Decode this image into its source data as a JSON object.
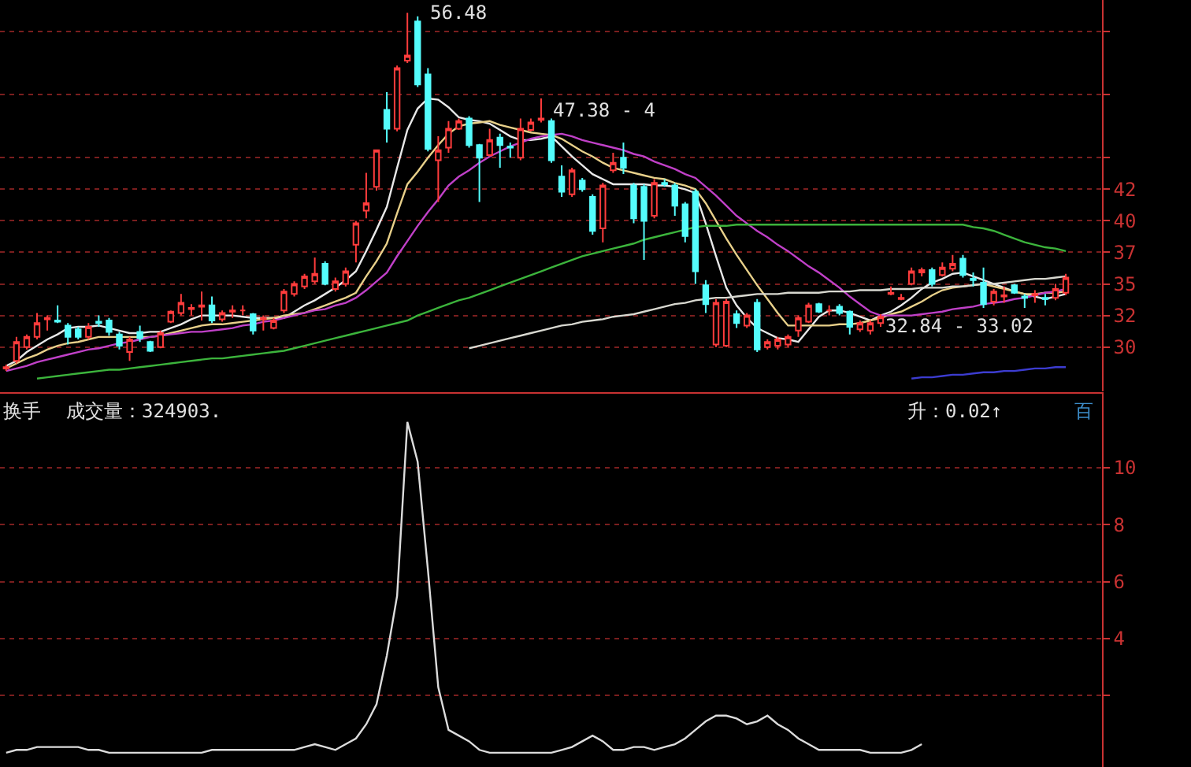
{
  "chart_data": [
    {
      "type": "candlestick",
      "categories": [
        null,
        null,
        null,
        null,
        null,
        null,
        null,
        null,
        null,
        null,
        null,
        null,
        null,
        null,
        null,
        null,
        null,
        null,
        null,
        null,
        null,
        null,
        null,
        null,
        null,
        null,
        null,
        null,
        null,
        null,
        null,
        null,
        null,
        null,
        null,
        null,
        null,
        null,
        null,
        null,
        null,
        null,
        null,
        null,
        null,
        null,
        null,
        null,
        null,
        null,
        null,
        null,
        null,
        null,
        null,
        null,
        null,
        null,
        null,
        null,
        null,
        null,
        null,
        null,
        null,
        null,
        null,
        null,
        null,
        null,
        null,
        null,
        null,
        null,
        null,
        null,
        null,
        null,
        null,
        null,
        null,
        null,
        null,
        null,
        null,
        null,
        null,
        null,
        null,
        null,
        null,
        null,
        null,
        null,
        null,
        null,
        null,
        null,
        null,
        null,
        null,
        null,
        null,
        null
      ],
      "ohlc": [
        [
          28.3,
          28.6,
          28.1,
          28.4
        ],
        [
          28.9,
          30.8,
          28.7,
          30.4
        ],
        [
          30.0,
          31.0,
          29.8,
          30.8
        ],
        [
          30.8,
          32.7,
          30.6,
          31.9
        ],
        [
          32.2,
          32.5,
          31.3,
          32.3
        ],
        [
          32.1,
          33.3,
          31.9,
          32.0
        ],
        [
          31.7,
          31.9,
          30.2,
          30.8
        ],
        [
          31.4,
          31.6,
          30.6,
          30.8
        ],
        [
          30.8,
          31.9,
          30.6,
          31.6
        ],
        [
          32.0,
          32.5,
          31.6,
          31.9
        ],
        [
          32.1,
          32.3,
          30.9,
          31.2
        ],
        [
          31.0,
          31.2,
          29.8,
          30.1
        ],
        [
          29.6,
          30.8,
          28.9,
          30.6
        ],
        [
          31.2,
          31.7,
          30.4,
          30.7
        ],
        [
          30.4,
          30.5,
          29.6,
          29.7
        ],
        [
          30.0,
          31.3,
          29.9,
          31.1
        ],
        [
          32.0,
          32.9,
          31.9,
          32.8
        ],
        [
          32.7,
          34.2,
          32.5,
          33.5
        ],
        [
          33.0,
          33.4,
          32.5,
          33.1
        ],
        [
          33.2,
          34.4,
          32.1,
          33.3
        ],
        [
          33.3,
          34.0,
          31.9,
          32.1
        ],
        [
          32.2,
          32.9,
          32.0,
          32.7
        ],
        [
          32.8,
          33.3,
          32.3,
          32.9
        ],
        [
          32.9,
          33.3,
          32.5,
          32.9
        ],
        [
          32.6,
          32.7,
          31.0,
          31.3
        ],
        [
          32.2,
          32.5,
          31.3,
          32.3
        ],
        [
          31.5,
          32.3,
          31.4,
          32.1
        ],
        [
          32.9,
          34.6,
          32.7,
          34.4
        ],
        [
          34.2,
          35.2,
          34.0,
          35.0
        ],
        [
          34.8,
          35.8,
          34.6,
          35.6
        ],
        [
          35.2,
          37.1,
          35.0,
          35.8
        ],
        [
          36.6,
          36.8,
          34.9,
          35.0
        ],
        [
          34.6,
          35.5,
          34.4,
          35.2
        ],
        [
          35.0,
          36.3,
          34.8,
          36.0
        ],
        [
          38.1,
          40.0,
          36.7,
          39.8
        ],
        [
          40.8,
          43.8,
          40.2,
          41.4
        ],
        [
          42.7,
          45.6,
          42.4,
          45.6
        ],
        [
          48.8,
          50.2,
          46.2,
          47.3
        ],
        [
          47.3,
          52.3,
          47.1,
          52.1
        ],
        [
          52.7,
          56.48,
          52.5,
          53.1
        ],
        [
          55.8,
          56.2,
          50.6,
          50.8
        ],
        [
          51.6,
          52.1,
          45.5,
          45.7
        ],
        [
          44.8,
          46.7,
          41.5,
          45.6
        ],
        [
          45.8,
          47.9,
          45.4,
          47.3
        ],
        [
          47.3,
          48.1,
          47.2,
          47.9
        ],
        [
          48.1,
          48.3,
          45.8,
          46.0
        ],
        [
          46.0,
          46.1,
          41.5,
          45.0
        ],
        [
          45.2,
          47.3,
          45.1,
          46.4
        ],
        [
          46.6,
          46.9,
          44.2,
          46.0
        ],
        [
          45.9,
          46.2,
          45.0,
          45.8
        ],
        [
          45.0,
          48.1,
          44.8,
          47.3
        ],
        [
          47.2,
          48.1,
          47.1,
          47.8
        ],
        [
          48.0,
          49.7,
          47.8,
          48.1
        ],
        [
          47.9,
          48.1,
          44.6,
          44.8
        ],
        [
          43.5,
          44.4,
          41.9,
          42.3
        ],
        [
          42.1,
          44.2,
          41.9,
          44.0
        ],
        [
          43.2,
          43.4,
          42.3,
          42.5
        ],
        [
          41.9,
          42.1,
          38.9,
          39.2
        ],
        [
          39.4,
          43.0,
          38.3,
          42.8
        ],
        [
          44.0,
          45.4,
          43.8,
          44.6
        ],
        [
          45.0,
          46.2,
          43.7,
          44.2
        ],
        [
          42.8,
          43.0,
          39.8,
          40.2
        ],
        [
          42.7,
          42.9,
          36.9,
          40.0
        ],
        [
          40.4,
          43.3,
          40.2,
          43.0
        ],
        [
          43.0,
          43.3,
          42.7,
          42.9
        ],
        [
          42.8,
          43.0,
          40.4,
          41.2
        ],
        [
          41.3,
          41.5,
          38.3,
          38.8
        ],
        [
          42.3,
          42.5,
          35.0,
          36.0
        ],
        [
          34.9,
          35.3,
          32.7,
          33.4
        ],
        [
          30.2,
          33.8,
          30.0,
          33.5
        ],
        [
          30.1,
          33.8,
          30.0,
          33.6
        ],
        [
          32.6,
          32.9,
          31.5,
          31.9
        ],
        [
          31.7,
          32.7,
          31.5,
          32.5
        ],
        [
          33.5,
          33.8,
          29.6,
          29.8
        ],
        [
          30.0,
          30.6,
          29.8,
          30.4
        ],
        [
          30.1,
          30.8,
          29.8,
          30.6
        ],
        [
          30.2,
          31.0,
          30.0,
          30.8
        ],
        [
          31.3,
          32.5,
          30.8,
          32.3
        ],
        [
          32.0,
          33.5,
          31.9,
          33.3
        ],
        [
          33.4,
          33.5,
          32.7,
          32.8
        ],
        [
          32.9,
          33.3,
          32.5,
          32.9
        ],
        [
          33.2,
          33.4,
          32.5,
          32.7
        ],
        [
          32.8,
          32.9,
          31.0,
          31.6
        ],
        [
          31.4,
          32.1,
          31.2,
          31.9
        ],
        [
          31.3,
          32.1,
          31.0,
          31.9
        ],
        [
          31.9,
          32.6,
          31.6,
          32.4
        ],
        [
          34.2,
          34.8,
          34.1,
          34.3
        ],
        [
          33.8,
          34.2,
          33.7,
          33.9
        ],
        [
          35.0,
          36.3,
          34.9,
          36.0
        ],
        [
          35.9,
          36.3,
          35.6,
          36.1
        ],
        [
          36.1,
          36.3,
          34.8,
          35.0
        ],
        [
          35.7,
          36.7,
          35.6,
          36.3
        ],
        [
          36.2,
          37.3,
          36.0,
          36.6
        ],
        [
          37.0,
          37.3,
          35.5,
          35.7
        ],
        [
          35.4,
          35.9,
          34.8,
          35.3
        ],
        [
          35.1,
          36.3,
          33.1,
          33.4
        ],
        [
          33.6,
          34.6,
          33.3,
          34.4
        ],
        [
          34.0,
          34.8,
          33.5,
          34.1
        ],
        [
          34.9,
          35.0,
          34.2,
          34.3
        ],
        [
          34.0,
          34.2,
          33.1,
          33.9
        ],
        [
          34.1,
          34.5,
          33.5,
          34.2
        ],
        [
          33.9,
          34.2,
          33.3,
          33.8
        ],
        [
          33.9,
          35.0,
          33.7,
          34.6
        ],
        [
          34.3,
          35.8,
          34.1,
          35.5
        ]
      ],
      "series": [
        {
          "type": "line",
          "color": "#e8e8e8",
          "values": [
            28.5,
            28.9,
            29.6,
            30.1,
            30.6,
            31.0,
            31.5,
            31.6,
            31.6,
            31.7,
            31.5,
            31.3,
            31.1,
            31.1,
            31.2,
            31.2,
            31.5,
            31.8,
            32.2,
            32.5,
            32.5,
            32.5,
            32.5,
            32.4,
            32.3,
            32.3,
            32.3,
            32.3,
            32.8,
            33.3,
            33.7,
            34.2,
            34.7,
            35.3,
            36.0,
            37.6,
            39.3,
            41.1,
            44.2,
            47.2,
            48.9,
            49.7,
            49.6,
            49.0,
            48.2,
            48.0,
            47.9,
            47.7,
            47.2,
            46.7,
            46.4,
            46.4,
            46.5,
            46.7,
            45.9,
            45.1,
            44.4,
            43.7,
            43.3,
            42.9,
            42.9,
            42.9,
            42.9,
            42.8,
            42.8,
            42.7,
            42.5,
            42.2,
            39.8,
            37.2,
            34.7,
            33.3,
            32.3,
            31.5,
            31.1,
            30.7,
            30.6,
            30.4,
            31.4,
            32.4,
            32.9,
            32.9,
            32.7,
            32.4,
            32.1,
            32.5,
            32.8,
            33.3,
            33.9,
            34.6,
            35.1,
            35.4,
            35.8,
            35.9,
            35.6,
            35.3,
            35.0,
            34.7,
            34.4,
            34.2,
            34.0,
            33.8,
            34.0,
            34.2
          ]
        },
        {
          "type": "line",
          "color": "#e8d08a",
          "values": [
            28.3,
            28.7,
            29.1,
            29.4,
            29.8,
            30.1,
            30.3,
            30.4,
            30.6,
            30.8,
            30.8,
            30.8,
            30.8,
            30.8,
            30.8,
            30.9,
            31.1,
            31.3,
            31.5,
            31.7,
            31.8,
            31.8,
            31.9,
            32.0,
            32.1,
            32.2,
            32.3,
            32.5,
            32.6,
            32.7,
            33.0,
            33.3,
            33.6,
            33.9,
            34.3,
            35.6,
            36.8,
            38.2,
            40.6,
            42.9,
            43.9,
            45.0,
            46.0,
            46.9,
            47.5,
            47.7,
            47.8,
            47.9,
            47.6,
            47.4,
            47.2,
            47.0,
            46.9,
            46.8,
            46.5,
            46.0,
            45.5,
            45.1,
            44.6,
            44.2,
            44.0,
            43.8,
            43.6,
            43.4,
            43.3,
            43.0,
            42.8,
            42.5,
            41.4,
            40.0,
            38.6,
            37.3,
            36.1,
            34.9,
            33.8,
            32.7,
            31.7,
            31.7,
            31.7,
            31.7,
            31.7,
            31.8,
            31.8,
            31.9,
            32.1,
            32.3,
            32.6,
            32.8,
            33.2,
            33.6,
            34.1,
            34.5,
            34.7,
            34.8,
            34.9,
            35.0,
            34.8,
            34.6,
            34.4,
            34.2,
            34.2,
            34.3,
            34.3,
            34.4
          ]
        },
        {
          "type": "line",
          "color": "#c040c8",
          "values": [
            28.1,
            28.3,
            28.5,
            28.8,
            29.0,
            29.2,
            29.4,
            29.6,
            29.8,
            29.9,
            30.1,
            30.3,
            30.4,
            30.6,
            30.8,
            30.9,
            31.0,
            31.1,
            31.2,
            31.2,
            31.3,
            31.4,
            31.5,
            31.7,
            31.8,
            32.0,
            32.1,
            32.3,
            32.5,
            32.7,
            32.9,
            33.0,
            33.3,
            33.5,
            33.9,
            34.5,
            35.2,
            35.9,
            37.2,
            38.4,
            39.6,
            40.7,
            41.7,
            42.8,
            43.5,
            44.0,
            44.6,
            45.1,
            45.5,
            45.9,
            46.2,
            46.5,
            46.7,
            46.8,
            46.9,
            46.7,
            46.4,
            46.2,
            46.0,
            45.8,
            45.6,
            45.3,
            45.1,
            44.7,
            44.4,
            44.1,
            43.7,
            43.4,
            42.7,
            42.0,
            41.2,
            40.4,
            39.8,
            39.2,
            38.7,
            38.1,
            37.6,
            37.0,
            36.4,
            35.9,
            35.3,
            34.7,
            34.0,
            33.4,
            32.8,
            32.5,
            32.5,
            32.5,
            32.5,
            32.6,
            32.7,
            32.8,
            33.0,
            33.1,
            33.2,
            33.4,
            33.5,
            33.6,
            33.8,
            33.9,
            34.1,
            34.3,
            34.4,
            34.6
          ]
        },
        {
          "type": "line",
          "color": "#3cb43c",
          "values": [
            null,
            null,
            null,
            27.5,
            27.6,
            27.7,
            27.8,
            27.9,
            28.0,
            28.1,
            28.2,
            28.2,
            28.3,
            28.4,
            28.5,
            28.6,
            28.7,
            28.8,
            28.9,
            29.0,
            29.1,
            29.1,
            29.2,
            29.3,
            29.4,
            29.5,
            29.6,
            29.7,
            29.9,
            30.1,
            30.3,
            30.5,
            30.7,
            30.9,
            31.1,
            31.3,
            31.5,
            31.7,
            31.9,
            32.1,
            32.5,
            32.8,
            33.1,
            33.4,
            33.7,
            33.9,
            34.2,
            34.5,
            34.8,
            35.1,
            35.4,
            35.7,
            36.0,
            36.3,
            36.6,
            36.9,
            37.2,
            37.4,
            37.6,
            37.8,
            38.0,
            38.2,
            38.5,
            38.7,
            38.9,
            39.1,
            39.3,
            39.5,
            39.6,
            39.6,
            39.6,
            39.7,
            39.7,
            39.7,
            39.7,
            39.7,
            39.7,
            39.7,
            39.7,
            39.7,
            39.7,
            39.7,
            39.7,
            39.7,
            39.7,
            39.7,
            39.7,
            39.7,
            39.7,
            39.7,
            39.7,
            39.7,
            39.7,
            39.7,
            39.5,
            39.4,
            39.2,
            38.9,
            38.6,
            38.3,
            38.1,
            37.9,
            37.8,
            37.6
          ]
        },
        {
          "type": "line",
          "color": "#d8d8d0",
          "values": [
            null,
            null,
            null,
            null,
            null,
            null,
            null,
            null,
            null,
            null,
            null,
            null,
            null,
            null,
            null,
            null,
            null,
            null,
            null,
            null,
            null,
            null,
            null,
            null,
            null,
            null,
            null,
            null,
            null,
            null,
            null,
            null,
            null,
            null,
            null,
            null,
            null,
            null,
            null,
            null,
            null,
            null,
            null,
            null,
            null,
            29.9,
            30.1,
            30.3,
            30.5,
            30.7,
            30.9,
            31.1,
            31.3,
            31.5,
            31.7,
            31.8,
            32.0,
            32.1,
            32.2,
            32.4,
            32.5,
            32.6,
            32.8,
            33.0,
            33.2,
            33.4,
            33.5,
            33.7,
            33.8,
            33.9,
            33.9,
            34.0,
            34.1,
            34.2,
            34.2,
            34.2,
            34.3,
            34.3,
            34.3,
            34.3,
            34.4,
            34.4,
            34.4,
            34.5,
            34.5,
            34.5,
            34.6,
            34.6,
            34.6,
            34.7,
            34.7,
            34.7,
            34.8,
            34.8,
            34.9,
            35.0,
            35.0,
            35.1,
            35.2,
            35.3,
            35.4,
            35.4,
            35.5,
            35.6
          ]
        },
        {
          "type": "line",
          "color": "#3c3cd0",
          "values": [
            null,
            null,
            null,
            null,
            null,
            null,
            null,
            null,
            null,
            null,
            null,
            null,
            null,
            null,
            null,
            null,
            null,
            null,
            null,
            null,
            null,
            null,
            null,
            null,
            null,
            null,
            null,
            null,
            null,
            null,
            null,
            null,
            null,
            null,
            null,
            null,
            null,
            null,
            null,
            null,
            null,
            null,
            null,
            null,
            null,
            null,
            null,
            null,
            null,
            null,
            null,
            null,
            null,
            null,
            null,
            null,
            null,
            null,
            null,
            null,
            null,
            null,
            null,
            null,
            null,
            null,
            null,
            null,
            null,
            null,
            null,
            null,
            null,
            null,
            null,
            null,
            null,
            null,
            null,
            null,
            null,
            null,
            null,
            null,
            null,
            null,
            null,
            null,
            27.5,
            27.6,
            27.6,
            27.7,
            27.8,
            27.8,
            27.9,
            28.0,
            28.0,
            28.1,
            28.1,
            28.2,
            28.3,
            28.3,
            28.4,
            28.4
          ]
        }
      ],
      "ylim": [
        26.5,
        57.5
      ],
      "yticks": [
        30,
        {
          "value": 32.5,
          "label": "32"
        },
        35,
        {
          "value": 37.5,
          "label": "37"
        },
        40,
        {
          "value": 42.5,
          "label": "42"
        },
        {
          "value": 45,
          "label": null
        },
        {
          "value": 50,
          "label": null
        },
        {
          "value": 55,
          "label": null
        }
      ],
      "grid": "y",
      "tick_labels": "y",
      "annotations": [
        "56.48",
        "47.38 - 4",
        {
          "text": "32.84 - 33.02",
          "y": 32.84
        }
      ]
    },
    {
      "type": "line",
      "categories": [
        null,
        null,
        null,
        null,
        null,
        null,
        null,
        null,
        null,
        null,
        null,
        null,
        null,
        null,
        null,
        null,
        null,
        null,
        null,
        null,
        null,
        null,
        null,
        null,
        null,
        null,
        null,
        null,
        null,
        null,
        null,
        null,
        null,
        null,
        null,
        null,
        null,
        null,
        null,
        null,
        null,
        null,
        null,
        null,
        null,
        null,
        null,
        null,
        null,
        null,
        null,
        null,
        null,
        null,
        null,
        null,
        null,
        null,
        null,
        null,
        null,
        null,
        null,
        null,
        null,
        null,
        null,
        null,
        null,
        null,
        null,
        null,
        null,
        null,
        null,
        null,
        null,
        null,
        null,
        null,
        null,
        null,
        null,
        null,
        null,
        null,
        null,
        null,
        null,
        null,
        null,
        null,
        null,
        null,
        null,
        null,
        null,
        null,
        null,
        null,
        null,
        null,
        null,
        null
      ],
      "series": [
        {
          "color": "#dcdcdc",
          "values": [
            0.0,
            0.1,
            0.1,
            0.2,
            0.2,
            0.2,
            0.2,
            0.2,
            0.1,
            0.1,
            0.0,
            0.0,
            0.0,
            0.0,
            0.0,
            0.0,
            0.0,
            0.0,
            0.0,
            0.0,
            0.1,
            0.1,
            0.1,
            0.1,
            0.1,
            0.1,
            0.1,
            0.1,
            0.1,
            0.2,
            0.3,
            0.2,
            0.1,
            0.3,
            0.5,
            1.0,
            1.7,
            3.4,
            5.5,
            11.6,
            10.2,
            6.4,
            2.3,
            0.8,
            0.6,
            0.4,
            0.1,
            0.0,
            0.0,
            0.0,
            0.0,
            0.0,
            0.0,
            0.0,
            0.1,
            0.2,
            0.4,
            0.6,
            0.4,
            0.1,
            0.1,
            0.2,
            0.2,
            0.1,
            0.2,
            0.3,
            0.5,
            0.8,
            1.1,
            1.3,
            1.3,
            1.2,
            1.0,
            1.1,
            1.3,
            1.0,
            0.8,
            0.5,
            0.3,
            0.1,
            0.1,
            0.1,
            0.1,
            0.1,
            0.0,
            0.0,
            0.0,
            0.0,
            0.1,
            0.3,
            null,
            null,
            null,
            null,
            null,
            null,
            null,
            null,
            null,
            null,
            null,
            null,
            null,
            null
          ]
        }
      ],
      "ylim": [
        -0.5,
        12.6
      ],
      "yticks": [
        {
          "value": 2,
          "label": null
        },
        4,
        6,
        8,
        10
      ],
      "grid": "y",
      "tick_labels": "y",
      "annotations": [
        "换手",
        "成交量：324903.",
        "升：0.02↑",
        "百"
      ]
    }
  ]
}
